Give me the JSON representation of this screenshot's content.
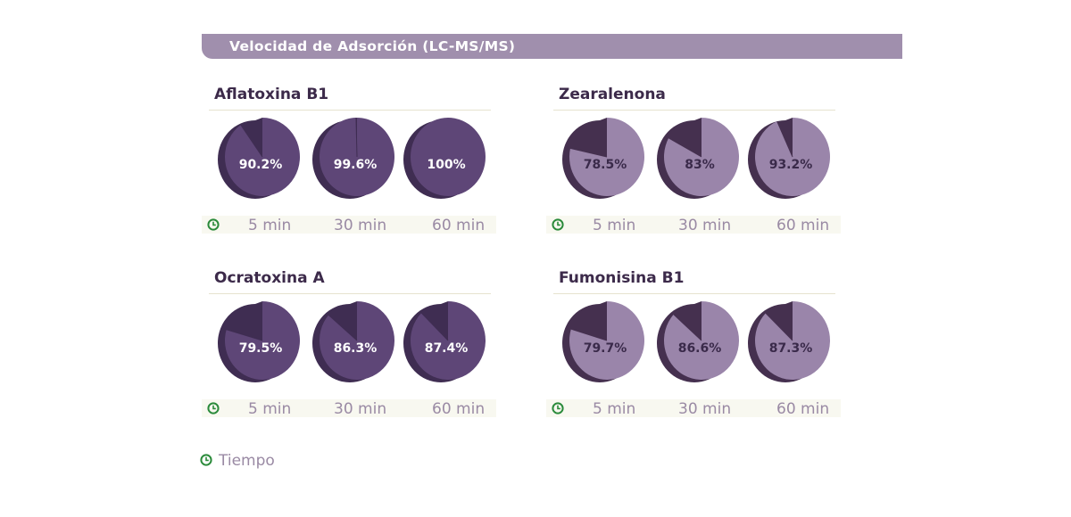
{
  "header": {
    "title": "Velocidad de Adsorción (LC-MS/MS)"
  },
  "legend": {
    "label": "Tiempo",
    "icon": "clock-icon"
  },
  "colors": {
    "banner": "#a08fad",
    "dark_pie_face": "#5e4677",
    "dark_pie_side": "#3f2d52",
    "light_pie_face": "#9a85aa",
    "light_pie_side": "#45304f",
    "clock_green": "#2a8a3a"
  },
  "chart_data": [
    {
      "type": "pie",
      "title": "Aflatoxina B1",
      "theme": "dark",
      "categories": [
        "5 min",
        "30 min",
        "60 min"
      ],
      "values": [
        90.2,
        99.6,
        100
      ],
      "labels": [
        "90.2%",
        "99.6%",
        "100%"
      ],
      "unit": "%"
    },
    {
      "type": "pie",
      "title": "Zearalenona",
      "theme": "light",
      "categories": [
        "5 min",
        "30 min",
        "60 min"
      ],
      "values": [
        78.5,
        83,
        93.2
      ],
      "labels": [
        "78.5%",
        "83%",
        "93.2%"
      ],
      "unit": "%"
    },
    {
      "type": "pie",
      "title": "Ocratoxina A",
      "theme": "dark",
      "categories": [
        "5 min",
        "30 min",
        "60 min"
      ],
      "values": [
        79.5,
        86.3,
        87.4
      ],
      "labels": [
        "79.5%",
        "86.3%",
        "87.4%"
      ],
      "unit": "%"
    },
    {
      "type": "pie",
      "title": "Fumonisina B1",
      "theme": "light",
      "categories": [
        "5 min",
        "30 min",
        "60 min"
      ],
      "values": [
        79.7,
        86.6,
        87.3
      ],
      "labels": [
        "79.7%",
        "86.6%",
        "87.3%"
      ],
      "unit": "%"
    }
  ]
}
